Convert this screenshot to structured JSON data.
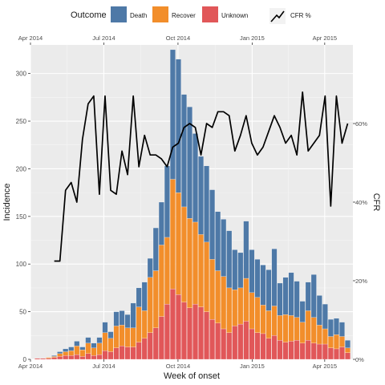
{
  "legend": {
    "title": "Outcome",
    "items": [
      {
        "label": "Death",
        "color": "#4e79a7"
      },
      {
        "label": "Recover",
        "color": "#f28e2b"
      },
      {
        "label": "Unknown",
        "color": "#e15759"
      }
    ],
    "line_label": "CFR %"
  },
  "chart_data": {
    "type": "bar",
    "stacked": true,
    "xlabel": "Week of onset",
    "ylabel": "Incidence",
    "y2label": "CFR",
    "ylim": [
      0,
      330
    ],
    "y2lim": [
      0,
      0.8
    ],
    "yticks": [
      0,
      50,
      100,
      150,
      200,
      250,
      300
    ],
    "y2ticks": [
      0,
      0.2,
      0.4,
      0.6
    ],
    "y2ticklabels": [
      "0%",
      "20%",
      "40%",
      "60%"
    ],
    "xlim": [
      "2014-04-01",
      "2015-05-06"
    ],
    "xticks": [
      "2014-04-01",
      "2014-07-01",
      "2014-10-01",
      "2015-01-01",
      "2015-04-01"
    ],
    "xticklabels": [
      "Apr 2014",
      "Jul 2014",
      "Oct 2014",
      "Jan 2015",
      "Apr 2015"
    ],
    "grid": true,
    "legend_position": "top",
    "bar_width_days": 6.5,
    "weeks": [
      "2014-04-06",
      "2014-04-13",
      "2014-04-20",
      "2014-04-27",
      "2014-05-04",
      "2014-05-11",
      "2014-05-18",
      "2014-05-25",
      "2014-06-01",
      "2014-06-08",
      "2014-06-15",
      "2014-06-22",
      "2014-06-29",
      "2014-07-06",
      "2014-07-13",
      "2014-07-20",
      "2014-07-27",
      "2014-08-03",
      "2014-08-10",
      "2014-08-17",
      "2014-08-24",
      "2014-08-31",
      "2014-09-07",
      "2014-09-14",
      "2014-09-21",
      "2014-09-28",
      "2014-10-05",
      "2014-10-12",
      "2014-10-19",
      "2014-10-26",
      "2014-11-02",
      "2014-11-09",
      "2014-11-16",
      "2014-11-23",
      "2014-11-30",
      "2014-12-07",
      "2014-12-14",
      "2014-12-21",
      "2014-12-28",
      "2015-01-04",
      "2015-01-11",
      "2015-01-18",
      "2015-01-25",
      "2015-02-01",
      "2015-02-08",
      "2015-02-15",
      "2015-02-22",
      "2015-03-01",
      "2015-03-08",
      "2015-03-15",
      "2015-03-22",
      "2015-03-29",
      "2015-04-05",
      "2015-04-12",
      "2015-04-19",
      "2015-04-26"
    ],
    "series": [
      {
        "name": "Unknown",
        "color": "#e15759",
        "values": [
          1,
          1,
          1,
          2,
          3,
          4,
          4,
          5,
          3,
          6,
          4,
          5,
          9,
          8,
          12,
          14,
          13,
          13,
          18,
          22,
          28,
          33,
          45,
          58,
          74,
          68,
          60,
          54,
          58,
          55,
          50,
          42,
          38,
          32,
          28,
          35,
          37,
          40,
          32,
          28,
          27,
          22,
          25,
          20,
          18,
          19,
          20,
          17,
          20,
          17,
          16,
          16,
          12,
          11,
          13,
          7
        ]
      },
      {
        "name": "Recover",
        "color": "#f28e2b",
        "values": [
          0,
          0,
          1,
          1,
          3,
          4,
          5,
          9,
          7,
          11,
          8,
          12,
          19,
          14,
          23,
          22,
          20,
          20,
          37,
          29,
          58,
          60,
          75,
          70,
          115,
          107,
          100,
          94,
          86,
          76,
          73,
          63,
          55,
          55,
          47,
          38,
          38,
          45,
          38,
          37,
          30,
          29,
          31,
          26,
          29,
          27,
          24,
          22,
          31,
          27,
          20,
          16,
          12,
          15,
          11,
          5
        ]
      },
      {
        "name": "Death",
        "color": "#4e79a7",
        "values": [
          0,
          0,
          0,
          1,
          2,
          3,
          4,
          5,
          3,
          6,
          5,
          6,
          11,
          7,
          15,
          15,
          14,
          26,
          20,
          30,
          20,
          45,
          45,
          75,
          136,
          140,
          118,
          117,
          93,
          82,
          80,
          73,
          62,
          60,
          60,
          42,
          37,
          60,
          45,
          40,
          42,
          43,
          60,
          34,
          39,
          45,
          38,
          22,
          30,
          45,
          31,
          26,
          18,
          17,
          15,
          8
        ]
      },
      {
        "name": "CFR %",
        "color": "#000000",
        "values": [
          null,
          null,
          null,
          0.25,
          0.25,
          0.43,
          0.45,
          0.4,
          0.56,
          0.65,
          0.67,
          0.42,
          0.67,
          0.43,
          0.42,
          0.53,
          0.47,
          0.67,
          0.49,
          0.57,
          0.52,
          0.52,
          0.51,
          0.49,
          0.54,
          0.55,
          0.59,
          0.6,
          0.59,
          0.52,
          0.6,
          0.59,
          0.63,
          0.63,
          0.62,
          0.53,
          0.57,
          0.62,
          0.55,
          0.52,
          0.54,
          0.58,
          0.62,
          0.59,
          0.55,
          0.57,
          0.52,
          0.68,
          0.53,
          0.55,
          0.57,
          0.67,
          0.39,
          0.67,
          0.55,
          0.6
        ]
      }
    ]
  }
}
